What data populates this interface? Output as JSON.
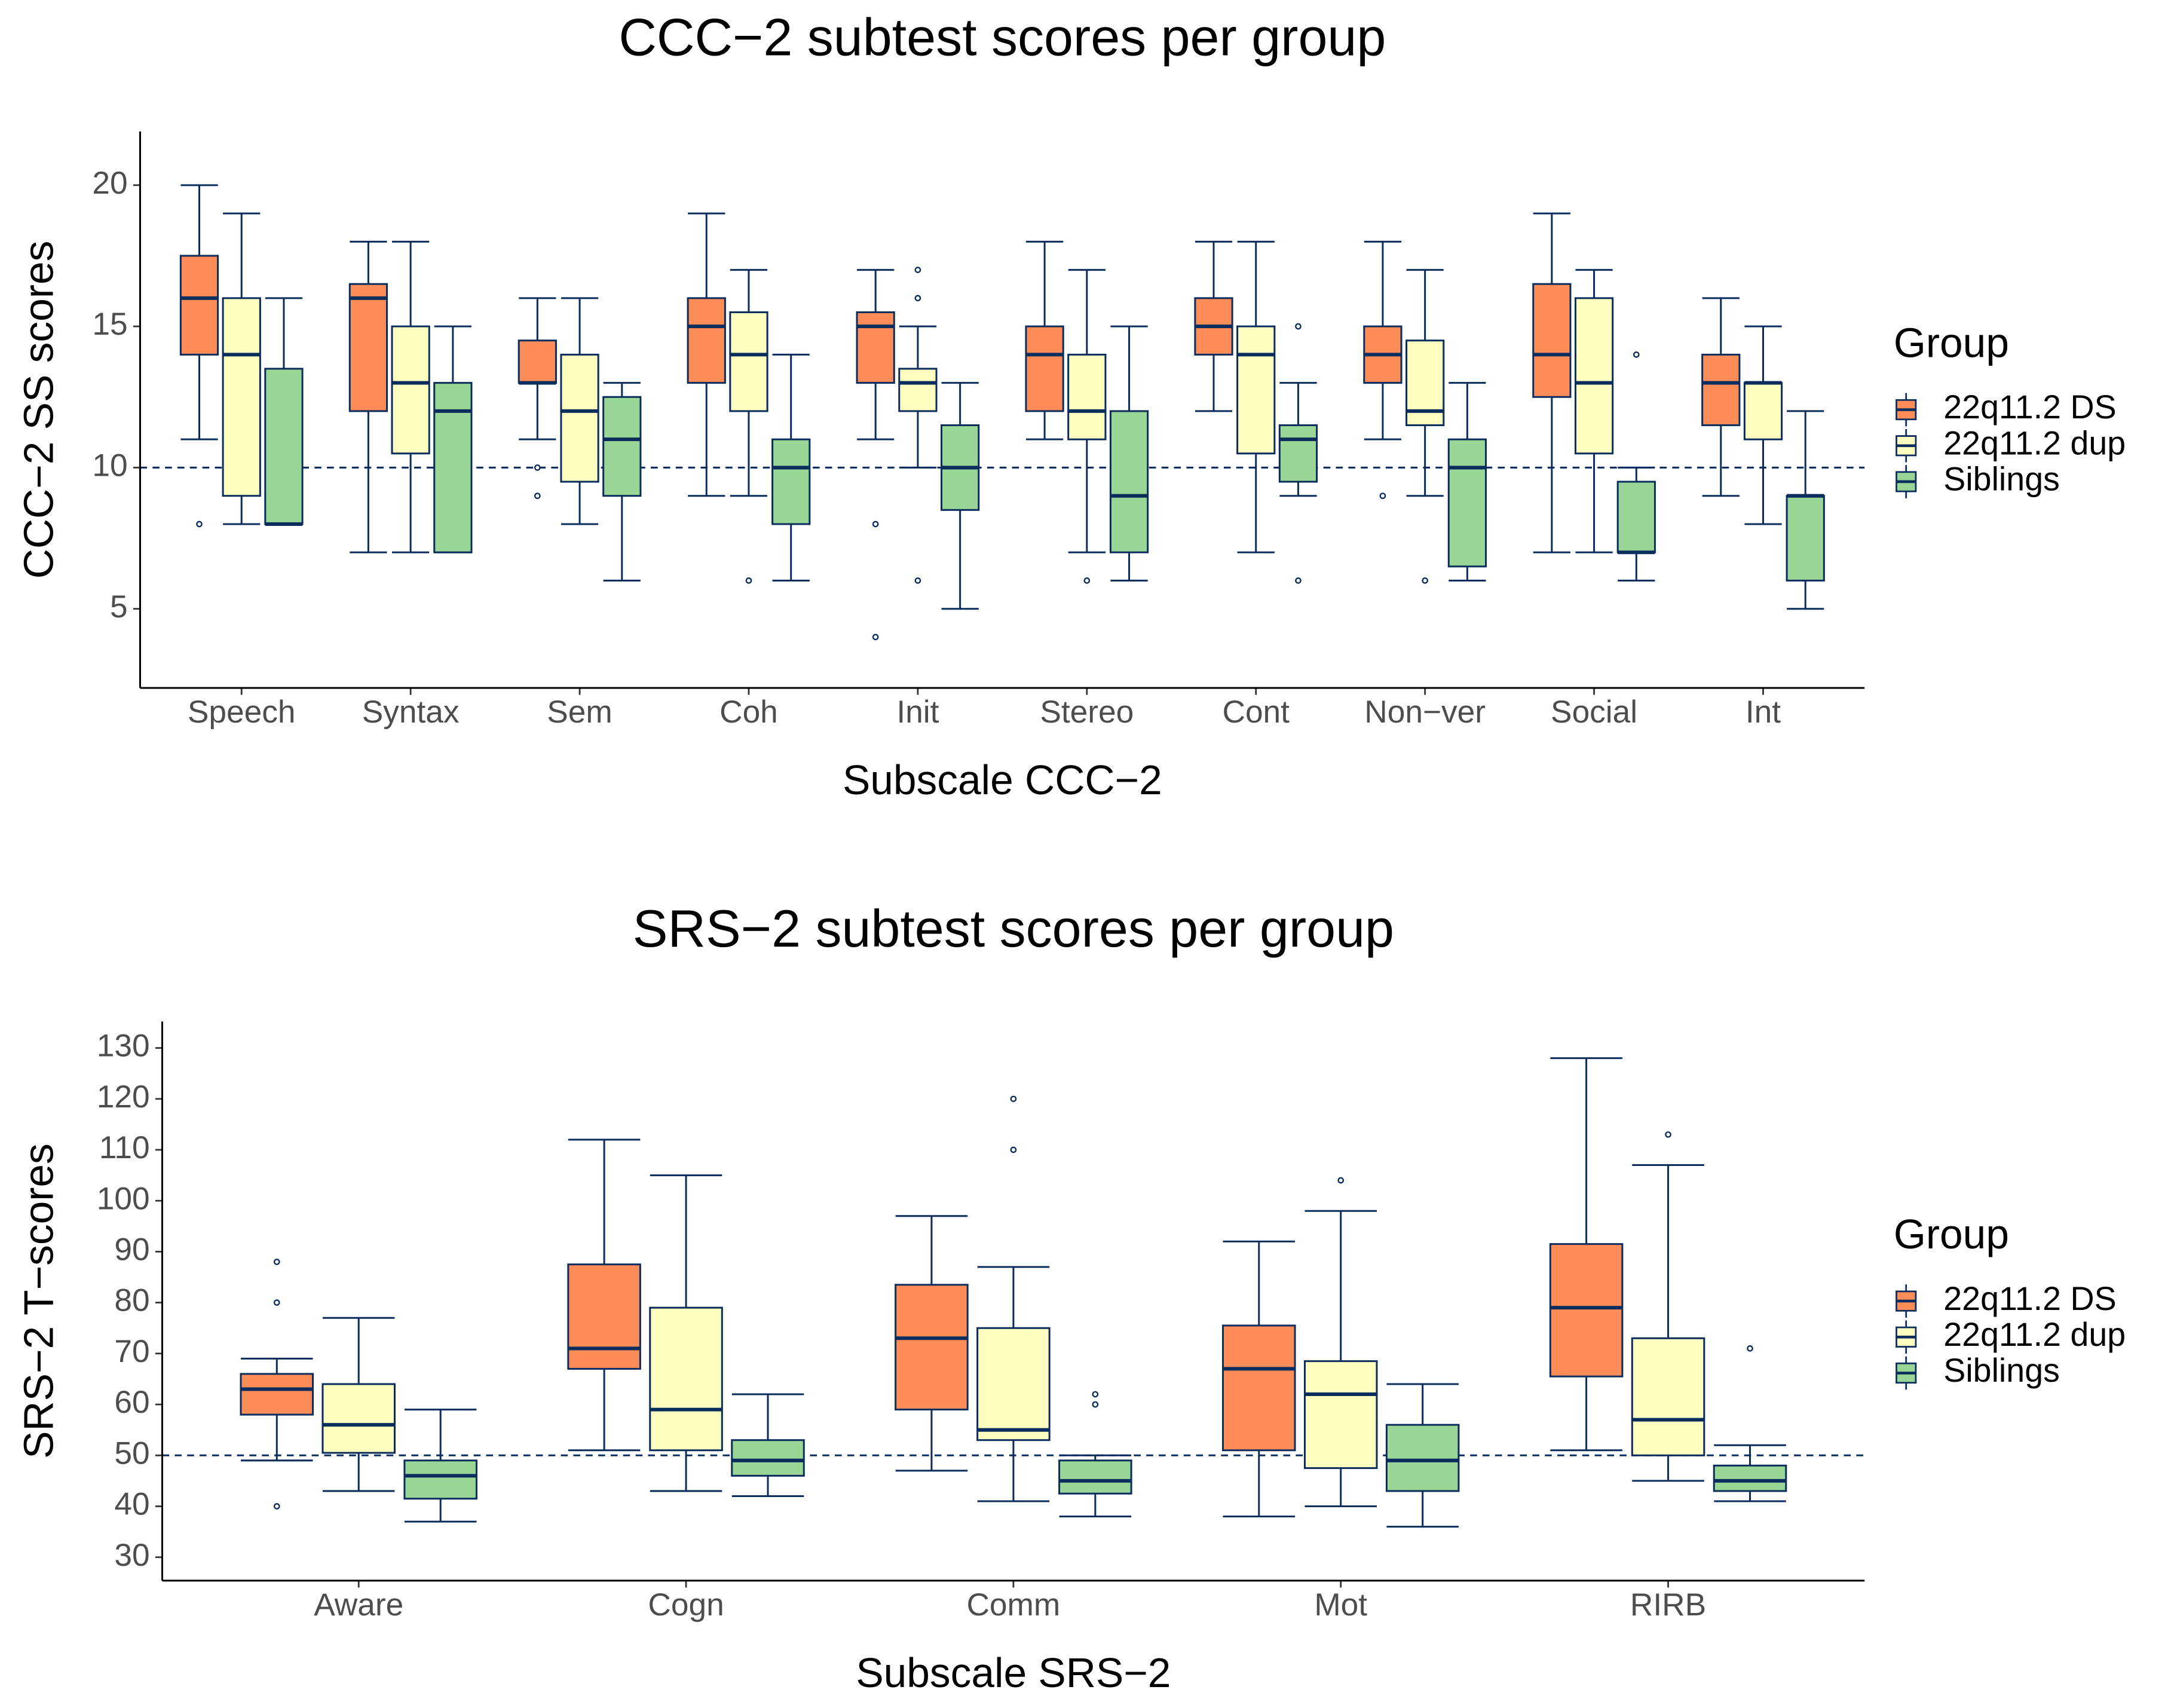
{
  "chart_data": [
    {
      "type": "box",
      "title": "CCC−2 subtest scores per group",
      "x_label": "Subscale CCC−2",
      "y_label": "CCC−2 SS scores",
      "categories": [
        "Speech",
        "Syntax",
        "Sem",
        "Coh",
        "Init",
        "Stereo",
        "Cont",
        "Non−ver",
        "Social",
        "Int"
      ],
      "ylim": [
        2.2,
        21.9
      ],
      "yticks": [
        5,
        10,
        15,
        20
      ],
      "reference_line": 10,
      "legend_title": "Group",
      "legend_position": "right",
      "line_color": "#0b2d5e",
      "series": [
        {
          "name": "22q11.2 DS",
          "color": "#fc8d59",
          "values": [
            {
              "min": 11,
              "q1": 14,
              "median": 16,
              "q3": 17.5,
              "max": 20,
              "outliers": [
                8
              ]
            },
            {
              "min": 7,
              "q1": 12,
              "median": 16,
              "q3": 16.5,
              "max": 18
            },
            {
              "min": 11,
              "q1": 13,
              "median": 13,
              "q3": 14.5,
              "max": 16,
              "outliers": [
                10,
                9
              ]
            },
            {
              "min": 9,
              "q1": 13,
              "median": 15,
              "q3": 16,
              "max": 19
            },
            {
              "min": 11,
              "q1": 13,
              "median": 15,
              "q3": 15.5,
              "max": 17,
              "outliers": [
                8,
                4
              ]
            },
            {
              "min": 11,
              "q1": 12,
              "median": 14,
              "q3": 15,
              "max": 18
            },
            {
              "min": 12,
              "q1": 14,
              "median": 15,
              "q3": 16,
              "max": 18
            },
            {
              "min": 11,
              "q1": 13,
              "median": 14,
              "q3": 15,
              "max": 18,
              "outliers": [
                9
              ]
            },
            {
              "min": 7,
              "q1": 12.5,
              "median": 14,
              "q3": 16.5,
              "max": 19
            },
            {
              "min": 9,
              "q1": 11.5,
              "median": 13,
              "q3": 14,
              "max": 16
            }
          ]
        },
        {
          "name": "22q11.2 dup",
          "color": "#ffffbf",
          "values": [
            {
              "min": 8,
              "q1": 9,
              "median": 14,
              "q3": 16,
              "max": 19
            },
            {
              "min": 7,
              "q1": 10.5,
              "median": 13,
              "q3": 15,
              "max": 18
            },
            {
              "min": 8,
              "q1": 9.5,
              "median": 12,
              "q3": 14,
              "max": 16
            },
            {
              "min": 9,
              "q1": 12,
              "median": 14,
              "q3": 15.5,
              "max": 17,
              "outliers": [
                6
              ]
            },
            {
              "min": 10,
              "q1": 12,
              "median": 13,
              "q3": 13.5,
              "max": 15,
              "outliers": [
                17,
                16,
                6
              ]
            },
            {
              "min": 7,
              "q1": 11,
              "median": 12,
              "q3": 14,
              "max": 17,
              "outliers": [
                6
              ]
            },
            {
              "min": 7,
              "q1": 10.5,
              "median": 14,
              "q3": 15,
              "max": 18
            },
            {
              "min": 9,
              "q1": 11.5,
              "median": 12,
              "q3": 14.5,
              "max": 17,
              "outliers": [
                6
              ]
            },
            {
              "min": 7,
              "q1": 10.5,
              "median": 13,
              "q3": 16,
              "max": 17
            },
            {
              "min": 8,
              "q1": 11,
              "median": 13,
              "q3": 13,
              "max": 15
            }
          ]
        },
        {
          "name": "Siblings",
          "color": "#99d594",
          "values": [
            {
              "min": 8,
              "q1": 8,
              "median": 8,
              "q3": 13.5,
              "max": 16
            },
            {
              "min": 7,
              "q1": 7,
              "median": 12,
              "q3": 13,
              "max": 15
            },
            {
              "min": 6,
              "q1": 9,
              "median": 11,
              "q3": 12.5,
              "max": 13
            },
            {
              "min": 6,
              "q1": 8,
              "median": 10,
              "q3": 11,
              "max": 14
            },
            {
              "min": 5,
              "q1": 8.5,
              "median": 10,
              "q3": 11.5,
              "max": 13
            },
            {
              "min": 6,
              "q1": 7,
              "median": 9,
              "q3": 12,
              "max": 15
            },
            {
              "min": 9,
              "q1": 9.5,
              "median": 11,
              "q3": 11.5,
              "max": 13,
              "outliers": [
                15,
                6
              ]
            },
            {
              "min": 6,
              "q1": 6.5,
              "median": 10,
              "q3": 11,
              "max": 13
            },
            {
              "min": 6,
              "q1": 7,
              "median": 7,
              "q3": 9.5,
              "max": 10,
              "outliers": [
                14
              ]
            },
            {
              "min": 5,
              "q1": 6,
              "median": 9,
              "q3": 9,
              "max": 12
            }
          ]
        }
      ]
    },
    {
      "type": "box",
      "title": "SRS−2 subtest scores per group",
      "x_label": "Subscale SRS−2",
      "y_label": "SRS−2 T−scores",
      "categories": [
        "Aware",
        "Cogn",
        "Comm",
        "Mot",
        "RIRB"
      ],
      "ylim": [
        25.4,
        135.2
      ],
      "yticks": [
        30,
        40,
        50,
        60,
        70,
        80,
        90,
        100,
        110,
        120,
        130
      ],
      "reference_line": 50,
      "legend_title": "Group",
      "legend_position": "right",
      "line_color": "#0b2d5e",
      "series": [
        {
          "name": "22q11.2 DS",
          "color": "#fc8d59",
          "values": [
            {
              "min": 49,
              "q1": 58,
              "median": 63,
              "q3": 66,
              "max": 69,
              "outliers": [
                88,
                80,
                40
              ]
            },
            {
              "min": 51,
              "q1": 67,
              "median": 71,
              "q3": 87.5,
              "max": 112
            },
            {
              "min": 47,
              "q1": 59,
              "median": 73,
              "q3": 83.5,
              "max": 97
            },
            {
              "min": 38,
              "q1": 51,
              "median": 67,
              "q3": 75.5,
              "max": 92
            },
            {
              "min": 51,
              "q1": 65.5,
              "median": 79,
              "q3": 91.5,
              "max": 128
            }
          ]
        },
        {
          "name": "22q11.2 dup",
          "color": "#ffffbf",
          "values": [
            {
              "min": 43,
              "q1": 50.5,
              "median": 56,
              "q3": 64,
              "max": 77
            },
            {
              "min": 43,
              "q1": 51,
              "median": 59,
              "q3": 79,
              "max": 105
            },
            {
              "min": 41,
              "q1": 53,
              "median": 55,
              "q3": 75,
              "max": 87,
              "outliers": [
                120,
                110
              ]
            },
            {
              "min": 40,
              "q1": 47.5,
              "median": 62,
              "q3": 68.5,
              "max": 98,
              "outliers": [
                104
              ]
            },
            {
              "min": 45,
              "q1": 50,
              "median": 57,
              "q3": 73,
              "max": 107,
              "outliers": [
                113
              ]
            }
          ]
        },
        {
          "name": "Siblings",
          "color": "#99d594",
          "values": [
            {
              "min": 37,
              "q1": 41.5,
              "median": 46,
              "q3": 49,
              "max": 59
            },
            {
              "min": 42,
              "q1": 46,
              "median": 49,
              "q3": 53,
              "max": 62
            },
            {
              "min": 38,
              "q1": 42.5,
              "median": 45,
              "q3": 49,
              "max": 50,
              "outliers": [
                62,
                60
              ]
            },
            {
              "min": 36,
              "q1": 43,
              "median": 49,
              "q3": 56,
              "max": 64
            },
            {
              "min": 41,
              "q1": 43,
              "median": 45,
              "q3": 48,
              "max": 52,
              "outliers": [
                71
              ]
            }
          ]
        }
      ]
    }
  ]
}
